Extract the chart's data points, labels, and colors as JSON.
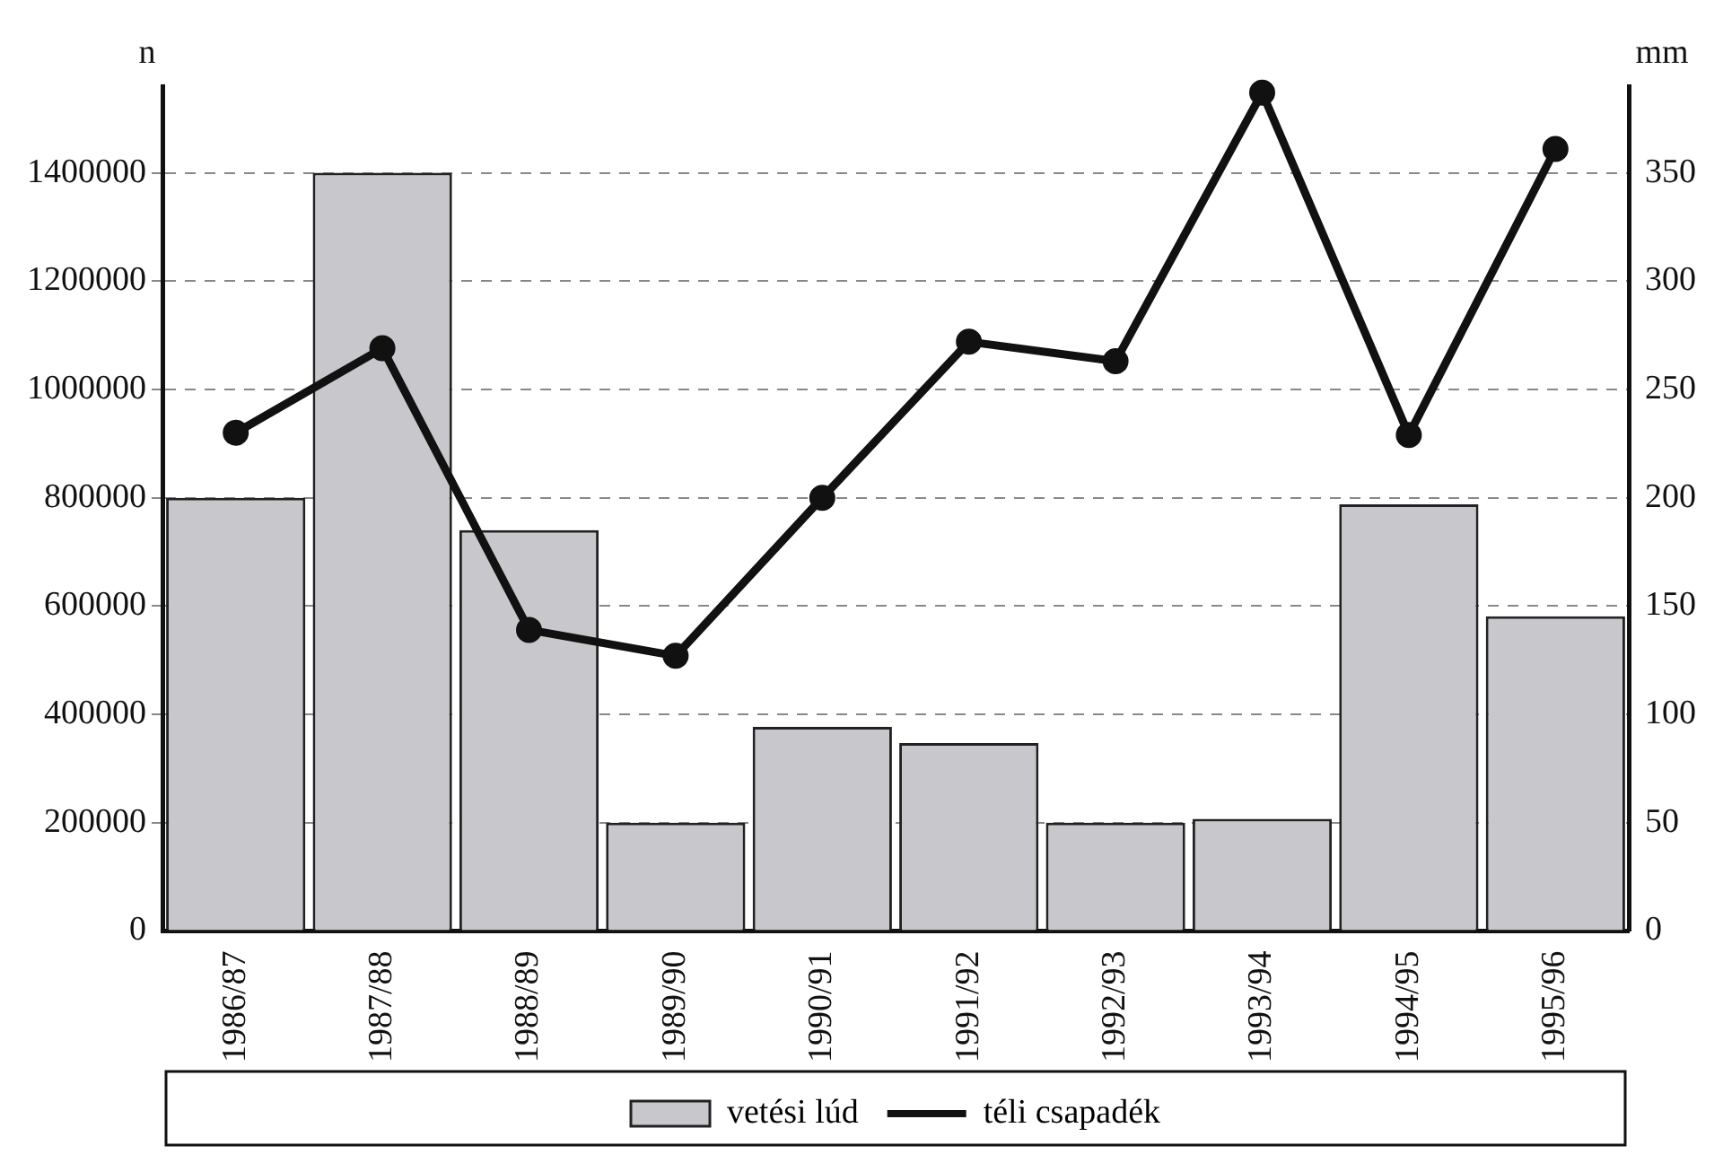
{
  "chart_data": {
    "type": "bar",
    "ylabel": "n",
    "y2label": "mm",
    "categories": [
      "1986/87",
      "1987/88",
      "1988/89",
      "1989/90",
      "1990/91",
      "1991/92",
      "1992/93",
      "1993/94",
      "1994/95",
      "1995/96"
    ],
    "series": [
      {
        "name": "vetési lúd",
        "color": "#c8c8cc",
        "values": [
          800000,
          1400000,
          740000,
          200000,
          377000,
          347000,
          200000,
          207000,
          788000,
          581000
        ]
      },
      {
        "name": "téli csapadék",
        "type": "line",
        "axis": "y2",
        "color": "#111111",
        "values": [
          230,
          269,
          139,
          127,
          200,
          272,
          263,
          387,
          229,
          361
        ]
      }
    ],
    "ylim": [
      0,
      1560000
    ],
    "yticks": [
      0,
      200000,
      400000,
      600000,
      800000,
      1000000,
      1200000,
      1400000
    ],
    "y2lim": [
      0,
      390
    ],
    "y2ticks": [
      0,
      50,
      100,
      150,
      200,
      250,
      300,
      350
    ],
    "grid": "y",
    "legend": "bottom",
    "marker": "circle",
    "line_style": "solid"
  }
}
